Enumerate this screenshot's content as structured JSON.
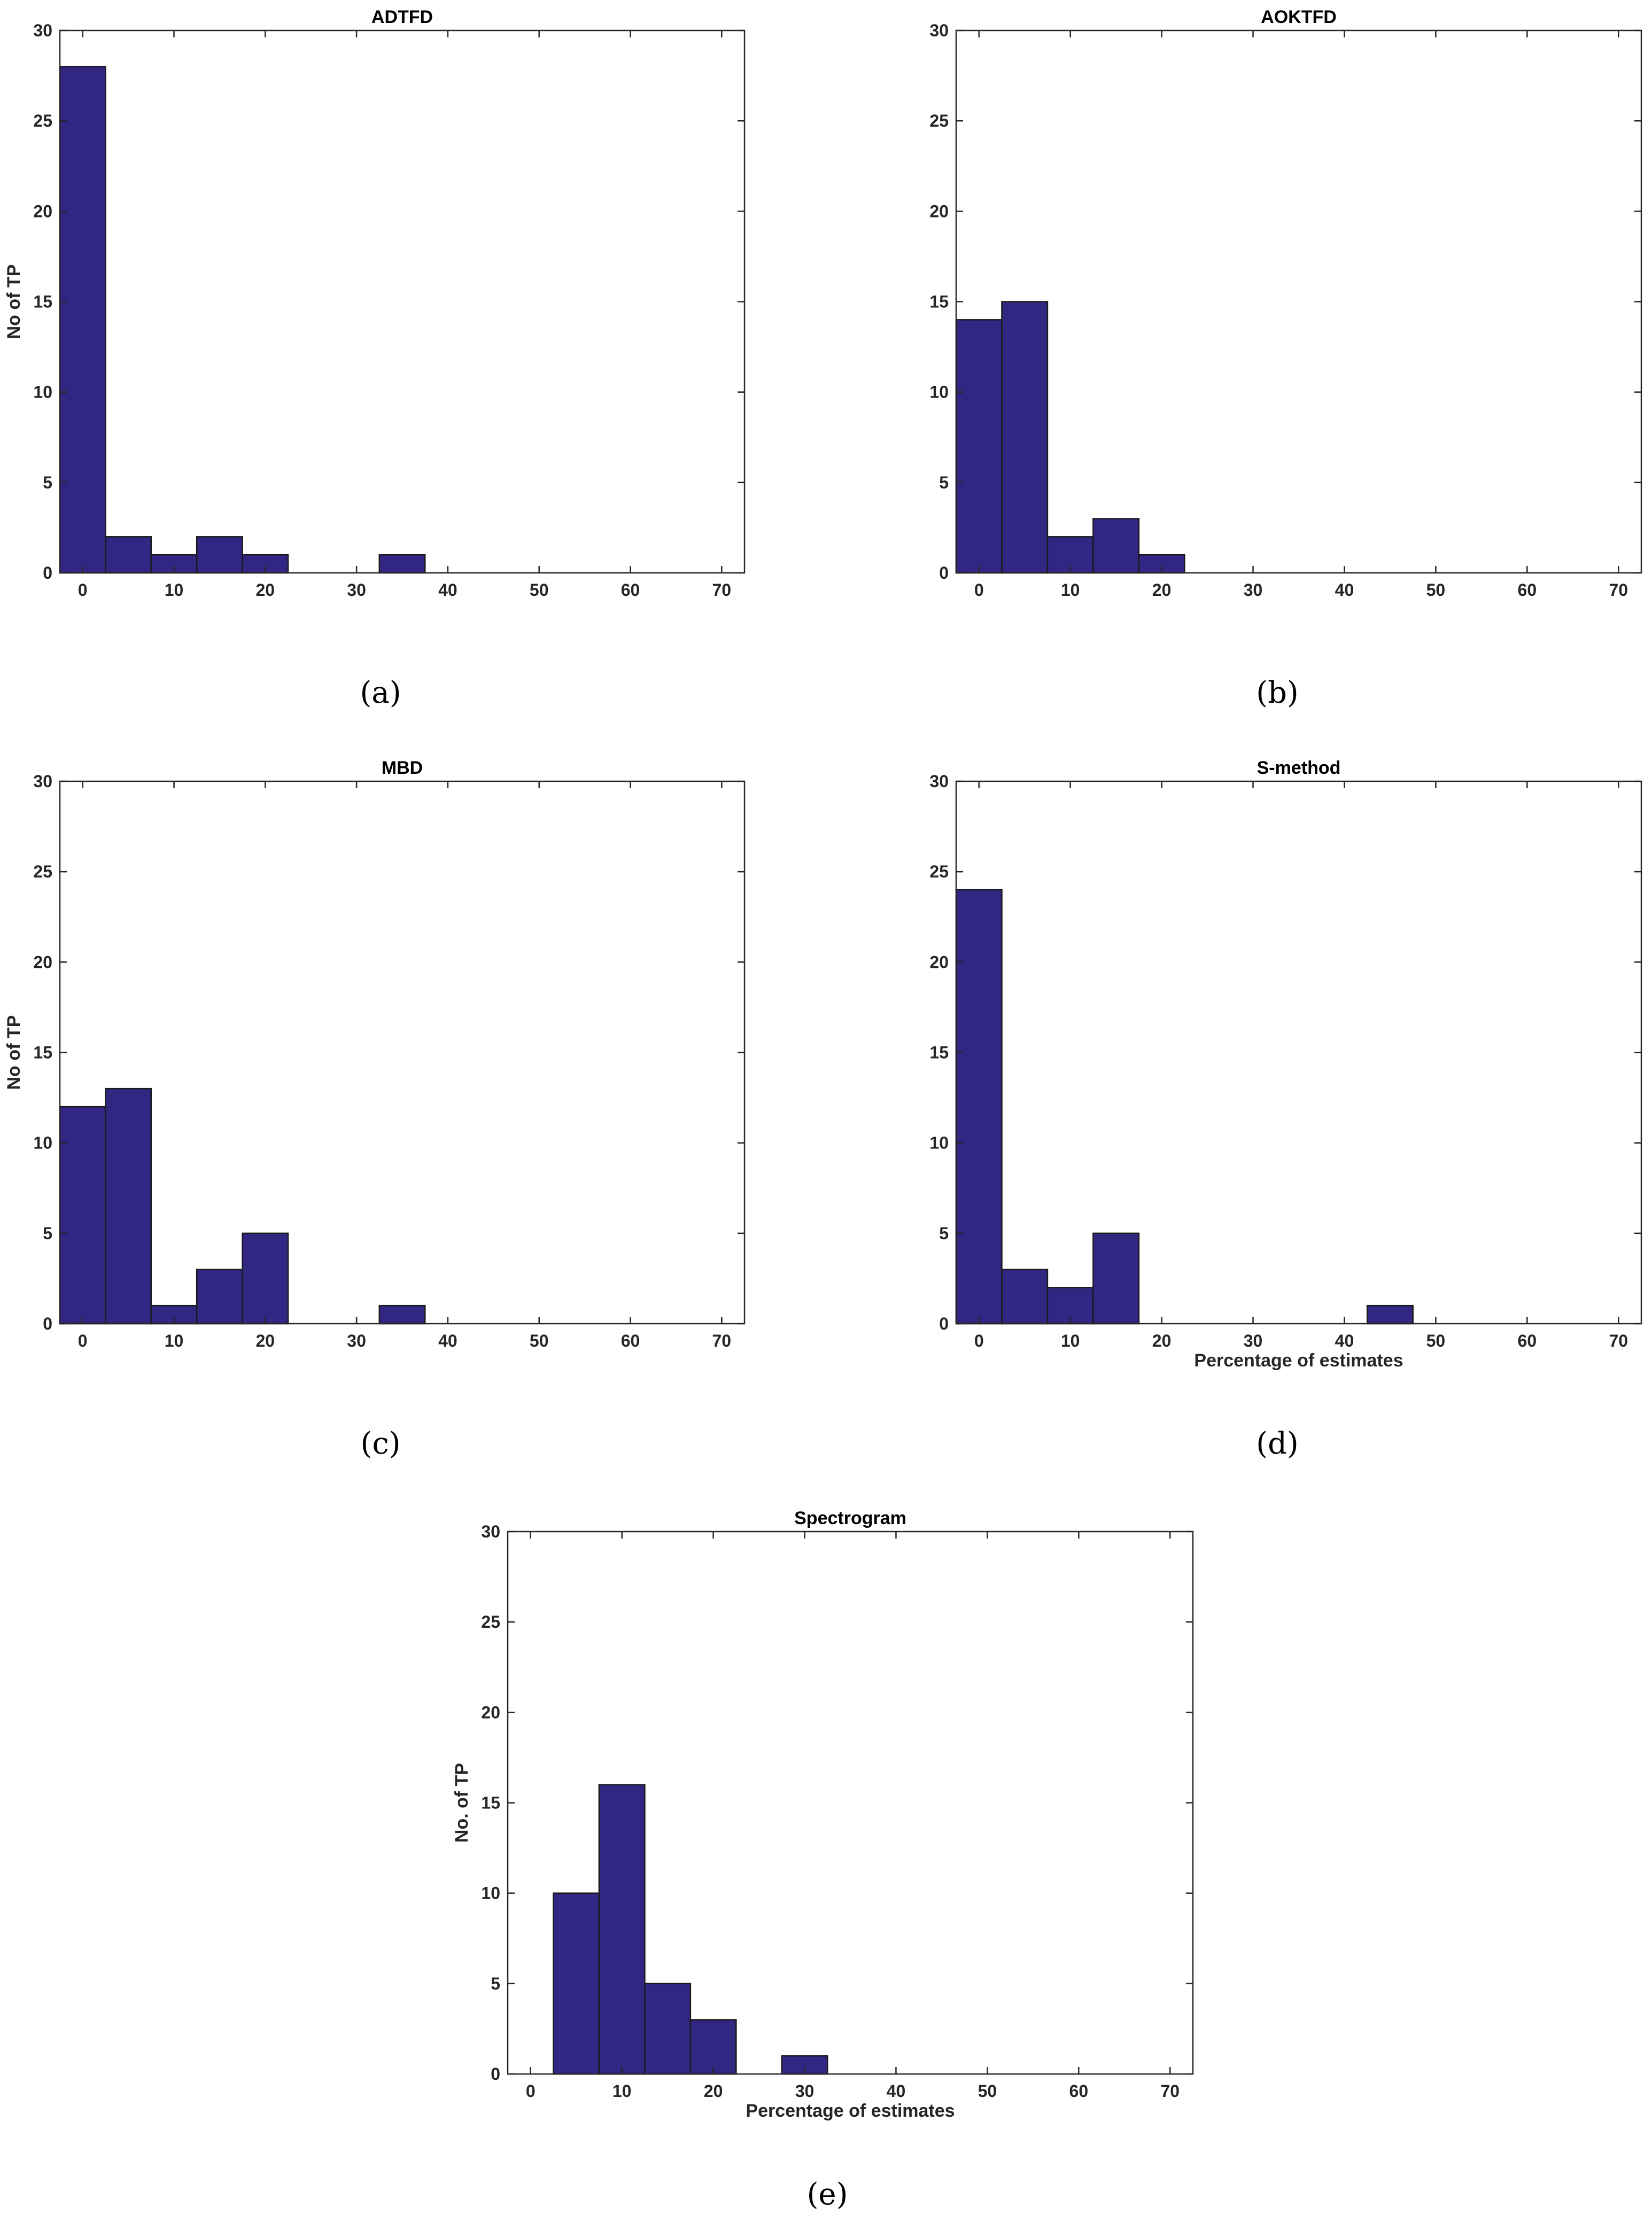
{
  "chart_data": [
    {
      "type": "bar",
      "title": "ADTFD",
      "xlabel": "",
      "ylabel": "No of TP",
      "caption": "(a)",
      "bin_width": 5,
      "xlim": [
        -2.5,
        72.5
      ],
      "ylim": [
        0,
        30
      ],
      "xticks": [
        0,
        10,
        20,
        30,
        40,
        50,
        60,
        70
      ],
      "yticks": [
        0,
        5,
        10,
        15,
        20,
        25,
        30
      ],
      "x": [
        0,
        5,
        10,
        15,
        20,
        25,
        30,
        35,
        40,
        45,
        50,
        55,
        60,
        65,
        70
      ],
      "values": [
        28,
        2,
        1,
        2,
        1,
        0,
        0,
        1,
        0,
        0,
        0,
        0,
        0,
        0,
        0
      ],
      "bar_color": "#312783",
      "grid": false
    },
    {
      "type": "bar",
      "title": "AOKTFD",
      "xlabel": "",
      "ylabel": "",
      "caption": "(b)",
      "bin_width": 5,
      "xlim": [
        -2.5,
        72.5
      ],
      "ylim": [
        0,
        30
      ],
      "xticks": [
        0,
        10,
        20,
        30,
        40,
        50,
        60,
        70
      ],
      "yticks": [
        0,
        5,
        10,
        15,
        20,
        25,
        30
      ],
      "x": [
        0,
        5,
        10,
        15,
        20,
        25,
        30,
        35,
        40,
        45,
        50,
        55,
        60,
        65,
        70
      ],
      "values": [
        14,
        15,
        2,
        3,
        1,
        0,
        0,
        0,
        0,
        0,
        0,
        0,
        0,
        0,
        0
      ],
      "bar_color": "#312783",
      "grid": false
    },
    {
      "type": "bar",
      "title": "MBD",
      "xlabel": "",
      "ylabel": "No of TP",
      "caption": "(c)",
      "bin_width": 5,
      "xlim": [
        -2.5,
        72.5
      ],
      "ylim": [
        0,
        30
      ],
      "xticks": [
        0,
        10,
        20,
        30,
        40,
        50,
        60,
        70
      ],
      "yticks": [
        0,
        5,
        10,
        15,
        20,
        25,
        30
      ],
      "x": [
        0,
        5,
        10,
        15,
        20,
        25,
        30,
        35,
        40,
        45,
        50,
        55,
        60,
        65,
        70
      ],
      "values": [
        12,
        13,
        1,
        3,
        5,
        0,
        0,
        1,
        0,
        0,
        0,
        0,
        0,
        0,
        0
      ],
      "bar_color": "#312783",
      "grid": false
    },
    {
      "type": "bar",
      "title": "S-method",
      "xlabel": "Percentage of estimates",
      "ylabel": "",
      "caption": "(d)",
      "bin_width": 5,
      "xlim": [
        -2.5,
        72.5
      ],
      "ylim": [
        0,
        30
      ],
      "xticks": [
        0,
        10,
        20,
        30,
        40,
        50,
        60,
        70
      ],
      "yticks": [
        0,
        5,
        10,
        15,
        20,
        25,
        30
      ],
      "x": [
        0,
        5,
        10,
        15,
        20,
        25,
        30,
        35,
        40,
        45,
        50,
        55,
        60,
        65,
        70
      ],
      "values": [
        24,
        3,
        2,
        5,
        0,
        0,
        0,
        0,
        0,
        1,
        0,
        0,
        0,
        0,
        0
      ],
      "bar_color": "#312783",
      "grid": false
    },
    {
      "type": "bar",
      "title": "Spectrogram",
      "xlabel": "Percentage of estimates",
      "ylabel": "No. of TP",
      "caption": "(e)",
      "bin_width": 5,
      "xlim": [
        -2.5,
        72.5
      ],
      "ylim": [
        0,
        30
      ],
      "xticks": [
        0,
        10,
        20,
        30,
        40,
        50,
        60,
        70
      ],
      "yticks": [
        0,
        5,
        10,
        15,
        20,
        25,
        30
      ],
      "x": [
        0,
        5,
        10,
        15,
        20,
        25,
        30,
        35,
        40,
        45,
        50,
        55,
        60,
        65,
        70
      ],
      "values": [
        0,
        10,
        16,
        5,
        3,
        0,
        1,
        0,
        0,
        0,
        0,
        0,
        0,
        0,
        0
      ],
      "bar_color": "#312783",
      "grid": false
    }
  ]
}
